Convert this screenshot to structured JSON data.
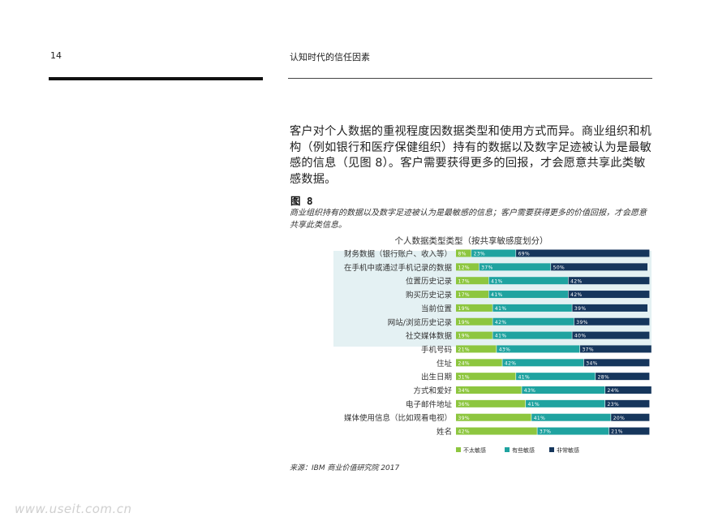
{
  "header": {
    "page_number": "14",
    "running_title": "认知时代的信任因素"
  },
  "body_text": "客户对个人数据的重视程度因数据类型和使用方式而异。商业组织和机构（例如银行和医疗保健组织）持有的数据以及数字足迹被认为是最敏感的信息（见图 8）。客户需要获得更多的回报，才会愿意共享此类敏感数据。",
  "figure": {
    "label": "图 8",
    "caption": "商业组织持有的数据以及数字足迹被认为是最敏感的信息；客户需要获得更多的价值回报，才会愿意共享此类信息。",
    "source": "来源：IBM 商业价值研究院 2017"
  },
  "watermark": "www.useit.com.cn",
  "colors": {
    "low": "#8dc63f",
    "some": "#1fa3a0",
    "high": "#16365c",
    "highlight": "#e4f1f3"
  },
  "chart_data": {
    "type": "bar",
    "orientation": "horizontal",
    "stacked": true,
    "title": "个人数据类型类型（按共享敏感度划分）",
    "categories": [
      "财务数据（银行账户、收入等）",
      "在手机中或通过手机记录的数据",
      "位置历史记录",
      "购买历史记录",
      "当前位置",
      "网站/浏览历史记录",
      "社交媒体数据",
      "手机号码",
      "住址",
      "出生日期",
      "方式和爱好",
      "电子邮件地址",
      "媒体使用信息（比如观看电视）",
      "姓名"
    ],
    "highlighted_categories": 7,
    "series": [
      {
        "name": "不太敏感",
        "values": [
          8,
          12,
          17,
          17,
          19,
          19,
          19,
          21,
          24,
          31,
          34,
          36,
          39,
          42
        ]
      },
      {
        "name": "有些敏感",
        "values": [
          23,
          37,
          41,
          41,
          41,
          42,
          41,
          43,
          42,
          41,
          43,
          41,
          41,
          37
        ]
      },
      {
        "name": "非常敏感",
        "values": [
          69,
          50,
          42,
          42,
          39,
          39,
          40,
          37,
          34,
          28,
          24,
          23,
          20,
          21
        ]
      }
    ],
    "value_suffix": "%",
    "xlim": [
      0,
      100
    ],
    "legend_position": "bottom"
  }
}
